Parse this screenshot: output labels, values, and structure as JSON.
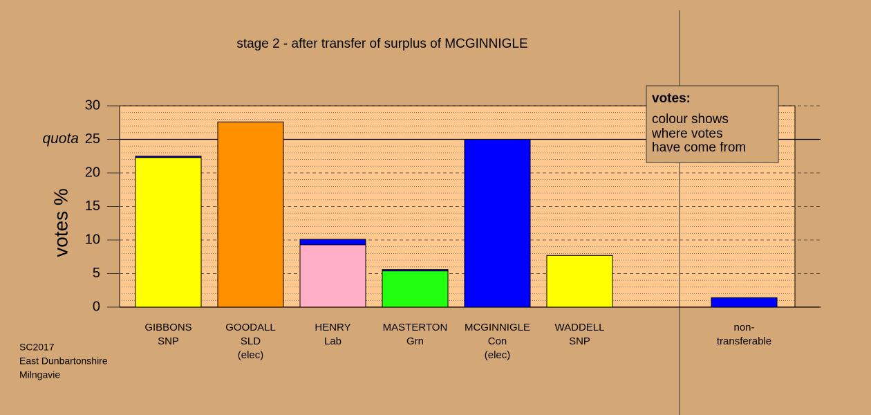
{
  "chart_data": {
    "type": "stacked-bar",
    "title": "stage 2 - after transfer of surplus of MCGINNIGLE",
    "y_label": "votes %",
    "categories": [
      [
        "GIBBONS",
        "SNP"
      ],
      [
        "GOODALL",
        "SLD",
        "(elec)"
      ],
      [
        "HENRY",
        "Lab"
      ],
      [
        "MASTERTON",
        "Grn"
      ],
      [
        "MCGINNIGLE",
        "Con",
        "(elec)"
      ],
      [
        "WADDELL",
        "SNP"
      ],
      null,
      [
        "non-",
        "transferable"
      ]
    ],
    "series": [
      {
        "values": [
          22.3,
          27.6,
          9.3,
          5.4,
          25,
          7.7,
          null,
          0
        ],
        "colors": [
          "#ffff00",
          "#ff9100",
          "#ffb0c8",
          "#22ff11",
          "#0000ff",
          "#ffff00",
          null,
          "#0000ff"
        ]
      },
      {
        "values": [
          0.2,
          0,
          0.8,
          0.2,
          0,
          0,
          null,
          1.4
        ],
        "color": "#0000ff"
      }
    ],
    "ylim": [
      0,
      30
    ],
    "yticks": [
      0,
      5,
      10,
      15,
      20,
      25,
      30
    ],
    "minor_yticks": [
      1,
      2,
      3,
      4,
      6,
      7,
      8,
      9,
      11,
      12,
      13,
      14,
      16,
      17,
      18,
      19,
      21,
      22,
      23,
      24,
      26,
      27,
      28,
      29
    ],
    "quota": {
      "value": 25,
      "label": "quota"
    },
    "legend": {
      "title": "votes:",
      "lines": [
        "colour shows",
        "where votes",
        "have come from"
      ]
    },
    "footnote": [
      "SC2017",
      "East Dunbartonshire",
      "Milngavie"
    ]
  }
}
